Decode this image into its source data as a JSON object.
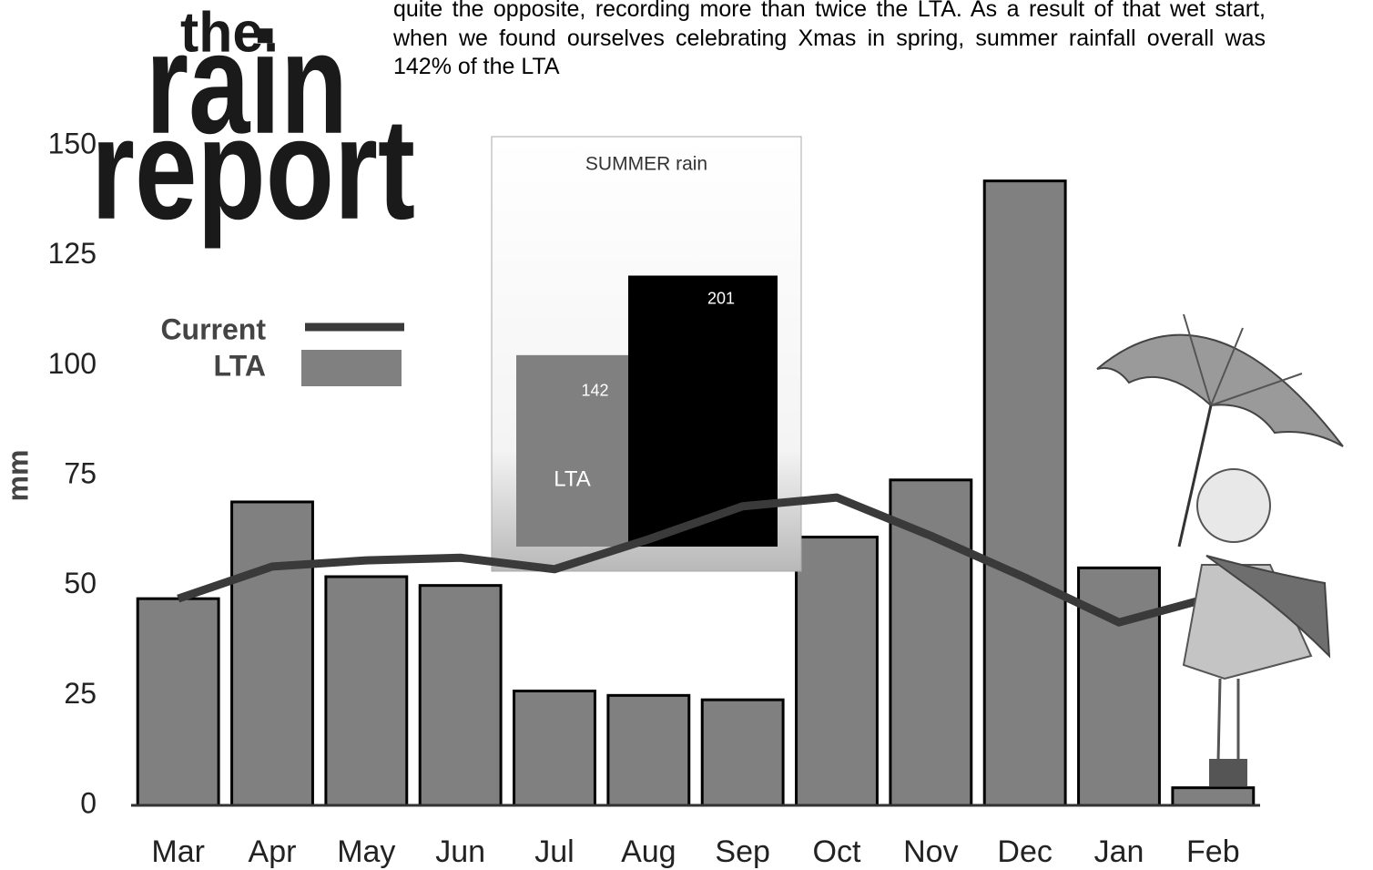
{
  "logo": {
    "line1": "the.",
    "line2": "rain",
    "line3": "report"
  },
  "paragraph": "quite the opposite, recording more than twice the LTA. As a result of that wet start, when we found ourselves celebrating Xmas in spring, summer rainfall overall was 142% of the LTA",
  "chart_data": [
    {
      "type": "bar",
      "ylabel": "mm",
      "categories": [
        "Mar",
        "Apr",
        "May",
        "Jun",
        "Jul",
        "Aug",
        "Sep",
        "Oct",
        "Nov",
        "Dec",
        "Jan",
        "Feb"
      ],
      "series": [
        {
          "name": "LTA",
          "type": "bar",
          "color": "#808080",
          "values": [
            47,
            69,
            52,
            50,
            26,
            25,
            24,
            61,
            74,
            142,
            54,
            4
          ]
        },
        {
          "name": "Current",
          "type": "line",
          "color": "#3a3a3a",
          "values": [
            47,
            54.3,
            55.7,
            56.3,
            53.7,
            60.5,
            68,
            70,
            61.3,
            51.8,
            41.6,
            47.4
          ]
        }
      ],
      "ylim": [
        0,
        150
      ],
      "yticks": [
        0,
        25,
        50,
        75,
        100,
        125,
        150
      ],
      "legend": "upper left"
    },
    {
      "type": "bar",
      "title": "SUMMER rain",
      "categories": [
        "LTA",
        null
      ],
      "values": [
        142,
        201
      ],
      "colors": [
        "#808080",
        "#000000"
      ],
      "ylim": [
        0,
        250
      ]
    }
  ]
}
